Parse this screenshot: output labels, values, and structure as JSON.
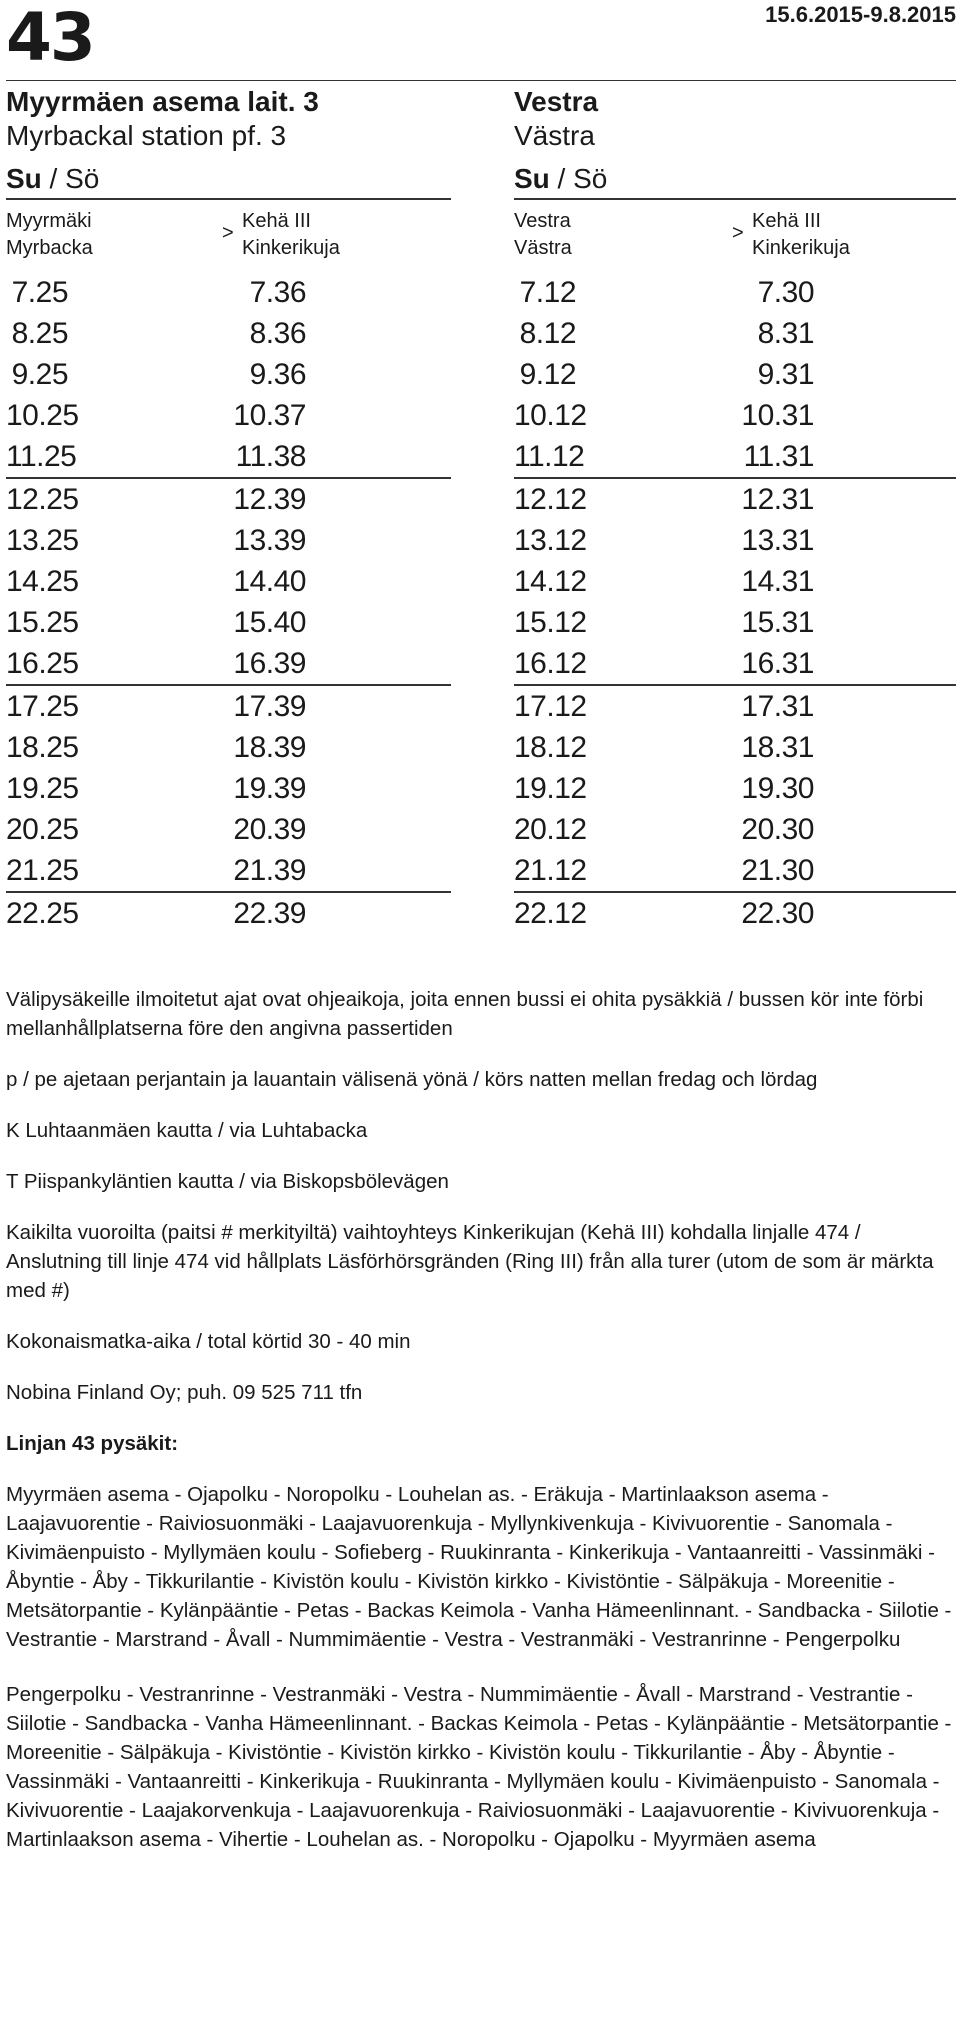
{
  "header": {
    "line_number": "43",
    "validity": "15.6.2015-9.8.2015"
  },
  "left": {
    "stop_fi": "Myyrmäen asema lait. 3",
    "stop_sv": "Myrbackal station pf. 3",
    "day_bold": "Su",
    "day_rest": " / Sö",
    "from_1": "Myyrmäki",
    "from_2": "Myrbacka",
    "arrow": ">",
    "to_1": "Kehä III",
    "to_2": "Kinkerikuja",
    "rows": [
      [
        "7.25",
        "7.36"
      ],
      [
        "8.25",
        "8.36"
      ],
      [
        "9.25",
        "9.36"
      ],
      [
        "10.25",
        "10.37"
      ],
      [
        "11.25",
        "11.38"
      ],
      [
        "12.25",
        "12.39"
      ],
      [
        "13.25",
        "13.39"
      ],
      [
        "14.25",
        "14.40"
      ],
      [
        "15.25",
        "15.40"
      ],
      [
        "16.25",
        "16.39"
      ],
      [
        "17.25",
        "17.39"
      ],
      [
        "18.25",
        "18.39"
      ],
      [
        "19.25",
        "19.39"
      ],
      [
        "20.25",
        "20.39"
      ],
      [
        "21.25",
        "21.39"
      ],
      [
        "22.25",
        "22.39"
      ]
    ]
  },
  "right": {
    "stop_fi": "Vestra",
    "stop_sv": "Västra",
    "day_bold": "Su",
    "day_rest": " / Sö",
    "from_1": "Vestra",
    "from_2": "Västra",
    "arrow": ">",
    "to_1": "Kehä III",
    "to_2": "Kinkerikuja",
    "rows": [
      [
        "7.12",
        "7.30"
      ],
      [
        "8.12",
        "8.31"
      ],
      [
        "9.12",
        "9.31"
      ],
      [
        "10.12",
        "10.31"
      ],
      [
        "11.12",
        "11.31"
      ],
      [
        "12.12",
        "12.31"
      ],
      [
        "13.12",
        "13.31"
      ],
      [
        "14.12",
        "14.31"
      ],
      [
        "15.12",
        "15.31"
      ],
      [
        "16.12",
        "16.31"
      ],
      [
        "17.12",
        "17.31"
      ],
      [
        "18.12",
        "18.31"
      ],
      [
        "19.12",
        "19.30"
      ],
      [
        "20.12",
        "20.30"
      ],
      [
        "21.12",
        "21.30"
      ],
      [
        "22.12",
        "22.30"
      ]
    ]
  },
  "notes": {
    "n1": "Välipysäkeille ilmoitetut ajat ovat ohjeaikoja, joita ennen bussi ei ohita pysäkkiä / bussen kör inte förbi mellanhållplatserna före den angivna passertiden",
    "n2": "p / pe ajetaan perjantain ja lauantain välisenä yönä / körs natten mellan fredag och lördag",
    "n3": "K Luhtaanmäen kautta / via Luhtabacka",
    "n4": "T Piispankyläntien kautta / via Biskopsbölevägen",
    "n5": "Kaikilta vuoroilta (paitsi # merkityiltä) vaihtoyhteys Kinkerikujan (Kehä III) kohdalla linjalle 474 / Anslutning till linje 474 vid hållplats Läsförhörsgränden (Ring III) från alla turer (utom de som är märkta med #)",
    "n6": "Kokonaismatka-aika / total körtid 30 - 40 min",
    "n7": "Nobina Finland Oy; puh. 09 525 711 tfn",
    "stops_heading": "Linjan 43 pysäkit:",
    "route_1": "Myyrmäen asema - Ojapolku - Noropolku - Louhelan as. - Eräkuja - Martinlaakson asema - Laajavuorentie - Raiviosuonmäki - Laajavuorenkuja - Myllynkivenkuja - Kivivuorentie - Sanomala - Kivimäenpuisto - Myllymäen koulu - Sofieberg - Ruukinranta - Kinkerikuja - Vantaanreitti - Vassinmäki - Åbyntie - Åby - Tikkurilantie - Kivistön koulu - Kivistön kirkko - Kivistöntie - Sälpäkuja - Moreenitie - Metsätorpantie - Kylänpääntie - Petas - Backas Keimola - Vanha Hämeenlinnant. - Sandbacka - Siilotie - Vestrantie - Marstrand - Åvall - Nummimäentie - Vestra - Vestranmäki - Vestranrinne - Pengerpolku",
    "route_2": "Pengerpolku - Vestranrinne - Vestranmäki - Vestra - Nummimäentie - Åvall - Marstrand - Vestrantie - Siilotie - Sandbacka - Vanha Hämeenlinnant. - Backas Keimola - Petas - Kylänpääntie - Metsätorpantie - Moreenitie - Sälpäkuja - Kivistöntie - Kivistön kirkko - Kivistön koulu - Tikkurilantie - Åby - Åbyntie - Vassinmäki - Vantaanreitti - Kinkerikuja - Ruukinranta - Myllymäen koulu - Kivimäenpuisto - Sanomala - Kivivuorentie - Laajakorvenkuja - Laajavuorenkuja - Raiviosuonmäki - Laajavuorentie - Kivivuorenkuja - Martinlaakson asema - Vihertie - Louhelan as. - Noropolku - Ojapolku - Myyrmäen asema"
  }
}
